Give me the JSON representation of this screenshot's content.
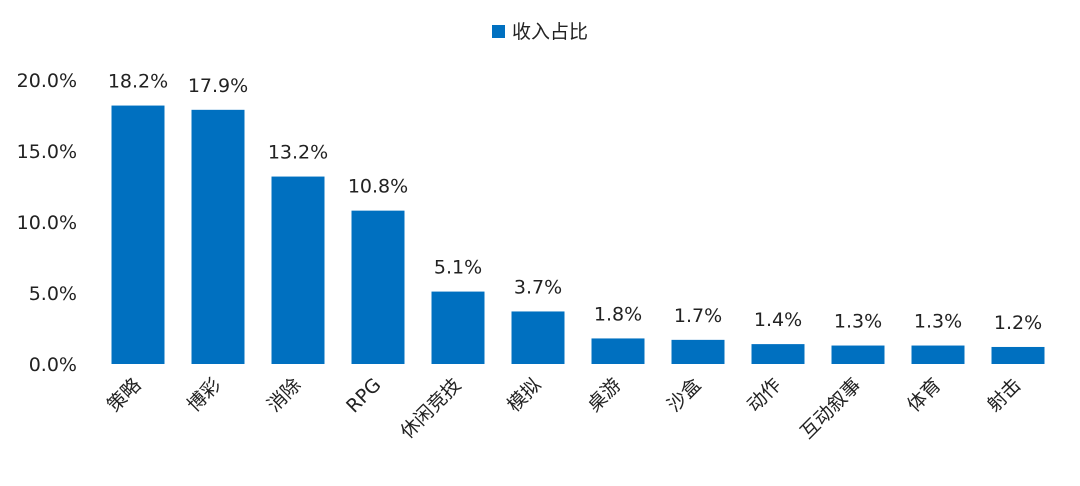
{
  "chart_data": {
    "type": "bar",
    "title": "",
    "xlabel": "",
    "ylabel": "",
    "categories": [
      "策略",
      "博彩",
      "消除",
      "RPG",
      "休闲竞技",
      "模拟",
      "桌游",
      "沙盒",
      "动作",
      "互动叙事",
      "体育",
      "射击"
    ],
    "series": [
      {
        "name": "收入占比",
        "values": [
          18.2,
          17.9,
          13.2,
          10.8,
          5.1,
          3.7,
          1.8,
          1.7,
          1.4,
          1.3,
          1.3,
          1.2
        ],
        "data_labels": [
          "18.2%",
          "17.9%",
          "13.2%",
          "10.8%",
          "5.1%",
          "3.7%",
          "1.8%",
          "1.7%",
          "1.4%",
          "1.3%",
          "1.3%",
          "1.2%"
        ],
        "color": "#0070C0"
      }
    ],
    "ylim": [
      0,
      20
    ],
    "yticks": [
      0,
      5,
      10,
      15,
      20
    ],
    "ytick_labels": [
      "0.0%",
      "5.0%",
      "10.0%",
      "15.0%",
      "20.0%"
    ],
    "grid": false,
    "legend": {
      "position": "top-center"
    }
  }
}
